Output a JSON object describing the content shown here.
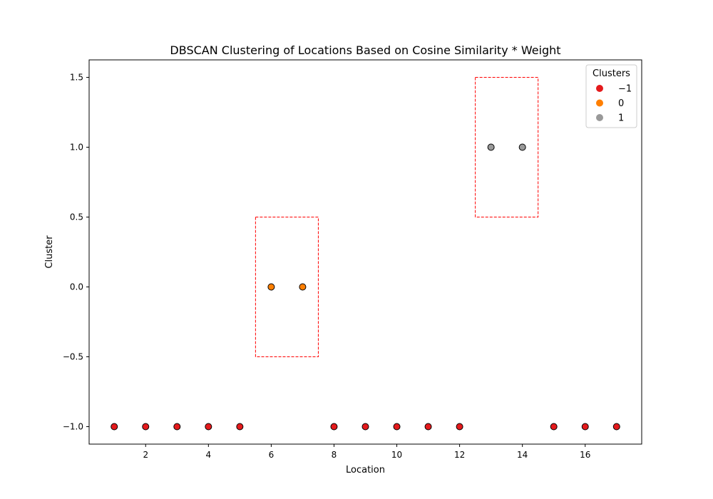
{
  "chart_data": {
    "type": "scatter",
    "title": "DBSCAN Clustering of Locations Based on Cosine Similarity * Weight",
    "xlabel": "Location",
    "ylabel": "Cluster",
    "xlim": [
      0.2,
      17.8
    ],
    "ylim": [
      -1.125,
      1.625
    ],
    "xticks": [
      2,
      4,
      6,
      8,
      10,
      12,
      14,
      16
    ],
    "yticks": [
      -1.0,
      -0.5,
      0.0,
      0.5,
      1.0,
      1.5
    ],
    "xtick_labels": [
      "2",
      "4",
      "6",
      "8",
      "10",
      "12",
      "14",
      "16"
    ],
    "ytick_labels": [
      "−1.0",
      "−0.5",
      "0.0",
      "0.5",
      "1.0",
      "1.5"
    ],
    "grid": false,
    "legend": {
      "title": "Clusters",
      "placement": "top-right"
    },
    "series": [
      {
        "name": "−1",
        "color": "#e41a1c",
        "x": [
          1,
          2,
          3,
          4,
          5,
          8,
          9,
          10,
          11,
          12,
          15,
          16,
          17
        ],
        "y": [
          -1,
          -1,
          -1,
          -1,
          -1,
          -1,
          -1,
          -1,
          -1,
          -1,
          -1,
          -1,
          -1
        ]
      },
      {
        "name": "0",
        "color": "#ff7f00",
        "x": [
          6,
          7
        ],
        "y": [
          0,
          0
        ]
      },
      {
        "name": "1",
        "color": "#999999",
        "x": [
          13,
          14
        ],
        "y": [
          1,
          1
        ]
      }
    ],
    "annotations": [
      {
        "shape": "dashed-rectangle",
        "color": "#ff0000",
        "x_range": [
          5.5,
          7.5
        ],
        "y_range": [
          -0.5,
          0.5
        ]
      },
      {
        "shape": "dashed-rectangle",
        "color": "#ff0000",
        "x_range": [
          12.5,
          14.5
        ],
        "y_range": [
          0.5,
          1.5
        ]
      }
    ]
  }
}
